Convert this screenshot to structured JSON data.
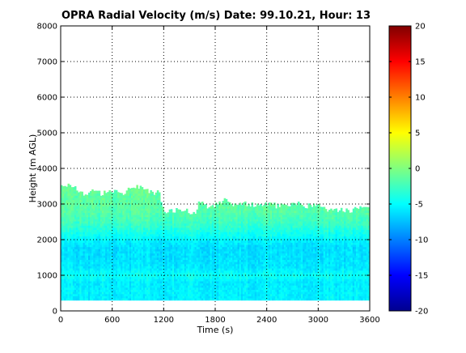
{
  "chart_data": {
    "type": "heatmap",
    "title": "OPRA Radial Velocity (m/s)  Date: 99.10.21, Hour: 13",
    "xlabel": "Time (s)",
    "ylabel": "Height (m AGL)",
    "xlim": [
      0,
      3600
    ],
    "ylim": [
      0,
      8000
    ],
    "xticks": [
      "0",
      "600",
      "1200",
      "1800",
      "2400",
      "3000",
      "3600"
    ],
    "yticks": [
      "0",
      "1000",
      "2000",
      "3000",
      "4000",
      "5000",
      "6000",
      "7000",
      "8000"
    ],
    "grid": true,
    "colorbar": {
      "min": -20,
      "max": 20,
      "ticks": [
        "-20",
        "-15",
        "-10",
        "-5",
        "0",
        "5",
        "10",
        "15",
        "20"
      ],
      "colormap": "jet"
    },
    "data_bottom_m": 300,
    "data_top_profile": {
      "x": [
        0,
        120,
        240,
        360,
        480,
        600,
        720,
        840,
        960,
        1080,
        1140,
        1200,
        1320,
        1440,
        1560,
        1620,
        1740,
        1800,
        1920,
        2040,
        2160,
        2280,
        2400,
        2520,
        2640,
        2760,
        2880,
        3000,
        3120,
        3240,
        3360,
        3480,
        3600
      ],
      "height": [
        3500,
        3550,
        3300,
        3350,
        3300,
        3350,
        3300,
        3550,
        3400,
        3300,
        3350,
        2750,
        2800,
        2850,
        2750,
        3100,
        2900,
        2950,
        3100,
        2950,
        3000,
        2950,
        3000,
        2950,
        2950,
        3000,
        2950,
        2950,
        2800,
        2850,
        2800,
        2950,
        2850
      ]
    },
    "velocity_profile": {
      "height": [
        300,
        600,
        800,
        1000,
        1200,
        1500,
        1800,
        2000,
        2200,
        2400,
        2600,
        2800,
        3000,
        3300,
        3600
      ],
      "velocity": [
        -5.5,
        -5.5,
        -5.8,
        -4.5,
        -5.8,
        -6.2,
        -6.2,
        -5.3,
        -4.2,
        -3.0,
        -2.2,
        -1.6,
        -1.4,
        -1.2,
        -1.0
      ]
    }
  }
}
